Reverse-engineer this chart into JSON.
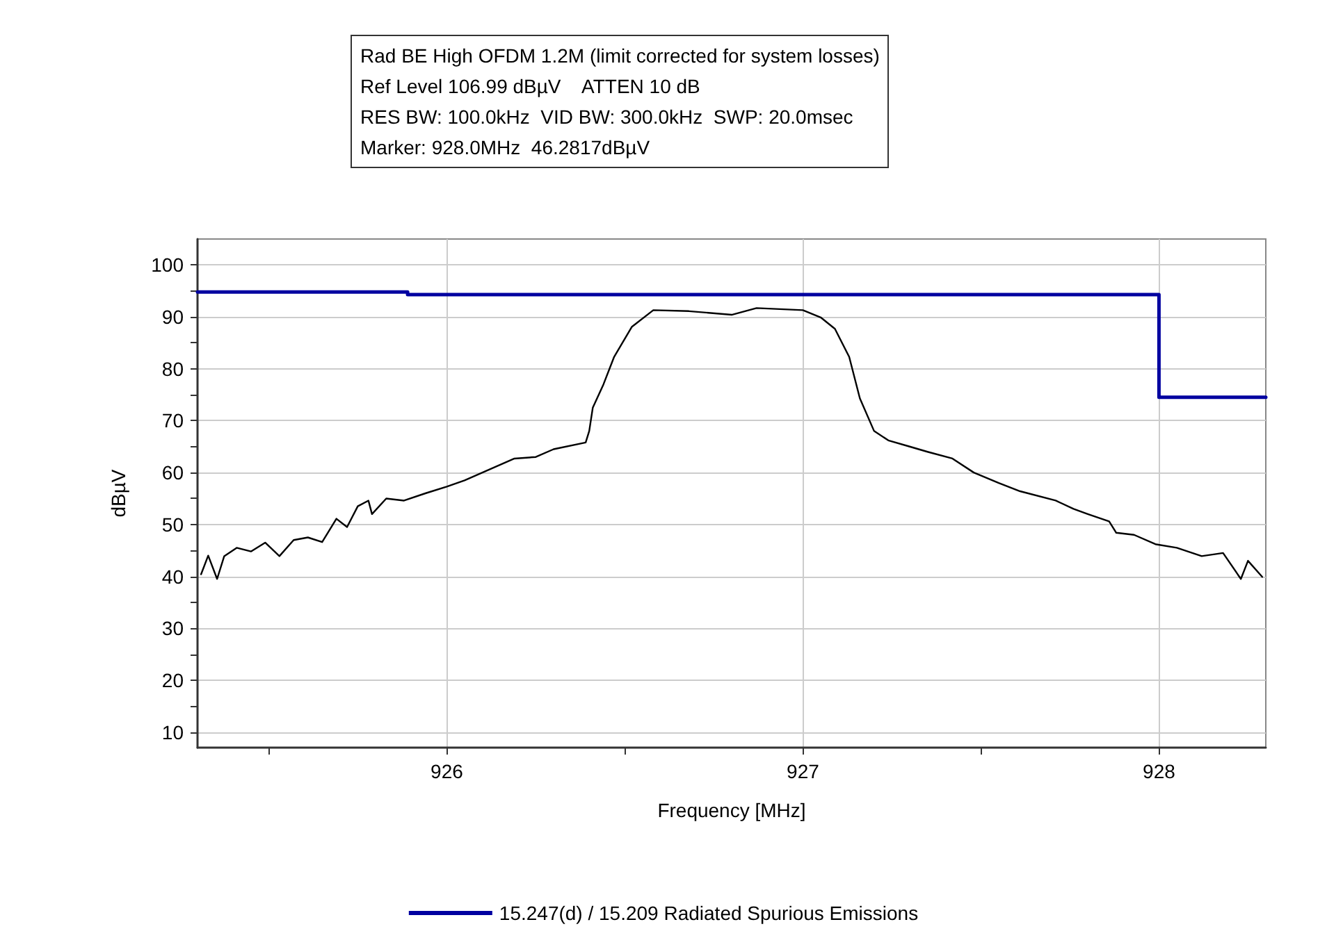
{
  "chart_data": {
    "type": "line",
    "xlabel": "Frequency [MHz]",
    "ylabel": "dBµV",
    "annotations": [
      "Rad BE High OFDM 1.2M (limit corrected for system losses)",
      "Ref Level 106.99 dBµV    ATTEN 10 dB",
      "RES BW: 100.0kHz  VID BW: 300.0kHz  SWP: 20.0msec",
      "Marker: 928.0MHz  46.2817dBµV"
    ],
    "xlim": [
      925.3,
      928.3
    ],
    "ylim": [
      7,
      105
    ],
    "xticks": [
      {
        "value": 925.5,
        "label": null
      },
      926,
      {
        "value": 926.5,
        "label": null
      },
      927,
      {
        "value": 927.5,
        "label": null
      },
      928
    ],
    "yticks": [
      10,
      {
        "value": 15,
        "label": null
      },
      20,
      {
        "value": 25,
        "label": null
      },
      30,
      {
        "value": 35,
        "label": null
      },
      40,
      {
        "value": 45,
        "label": null
      },
      50,
      {
        "value": 55,
        "label": null
      },
      60,
      {
        "value": 65,
        "label": null
      },
      70,
      {
        "value": 75,
        "label": null
      },
      80,
      {
        "value": 85,
        "label": null
      },
      90,
      {
        "value": 95,
        "label": null
      },
      100
    ],
    "grid": true,
    "legend": "bottom",
    "marker": "none",
    "line_style": "solid",
    "series": [
      {
        "color": "#000000",
        "x": [
          925.31,
          925.33,
          925.355,
          925.375,
          925.41,
          925.45,
          925.49,
          925.53,
          925.57,
          925.61,
          925.65,
          925.69,
          925.72,
          925.75,
          925.78,
          925.79,
          925.83,
          925.88,
          925.94,
          926.0,
          926.05,
          926.1,
          926.19,
          926.25,
          926.3,
          926.39,
          926.4,
          926.41,
          926.44,
          926.47,
          926.52,
          926.58,
          926.68,
          926.8,
          926.87,
          927.0,
          927.05,
          927.09,
          927.13,
          927.16,
          927.2,
          927.24,
          927.3,
          927.35,
          927.42,
          927.48,
          927.55,
          927.61,
          927.71,
          927.76,
          927.8,
          927.86,
          927.88,
          927.93,
          927.99,
          928.05,
          928.12,
          928.18,
          928.23,
          928.25,
          928.29
        ],
        "values": [
          40.4,
          44,
          39.5,
          43.9,
          45.5,
          44.8,
          46.5,
          43.9,
          47,
          47.5,
          46.6,
          51.1,
          49.5,
          53.5,
          54.6,
          52,
          55,
          54.6,
          56,
          57.3,
          58.5,
          60,
          62.7,
          63,
          64.5,
          65.8,
          68,
          72.5,
          77,
          82.3,
          88.1,
          91.3,
          91.1,
          90.4,
          91.7,
          91.3,
          89.9,
          87.7,
          82.3,
          74.3,
          68,
          66.2,
          65,
          64,
          62.7,
          60,
          58,
          56.4,
          54.6,
          53,
          52,
          50.6,
          48.4,
          48,
          46.2,
          45.5,
          43.9,
          44.5,
          39.5,
          43,
          39.9
        ]
      },
      {
        "name": "15.247(d) / 15.209 Radiated Spurious Emissions",
        "color": "#0000a0",
        "x": [
          925.3,
          925.89,
          925.89,
          928.0,
          928.0,
          928.3
        ],
        "values": [
          94.8,
          94.8,
          94.3,
          94.3,
          74.5,
          74.5
        ]
      }
    ]
  }
}
